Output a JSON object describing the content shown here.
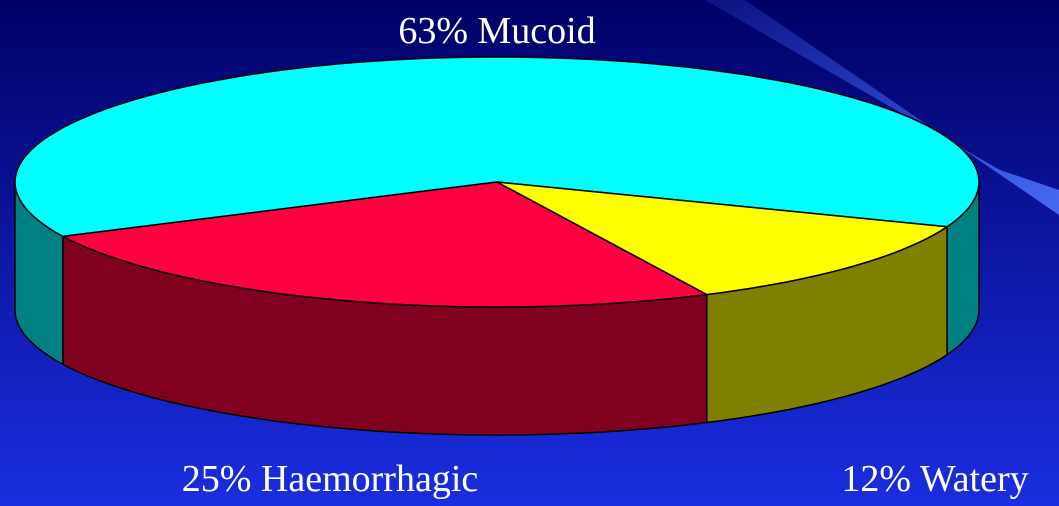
{
  "chart_data": {
    "type": "pie",
    "categories": [
      "Mucoid",
      "Haemorrhagic",
      "Watery"
    ],
    "values": [
      63,
      25,
      12
    ],
    "value_labels": [
      "63%",
      "25%",
      "12%"
    ],
    "colors": [
      "#00ffff",
      "#ff0040",
      "#ffff00"
    ],
    "side_colors": [
      "#008080",
      "#800020",
      "#808000"
    ]
  }
}
